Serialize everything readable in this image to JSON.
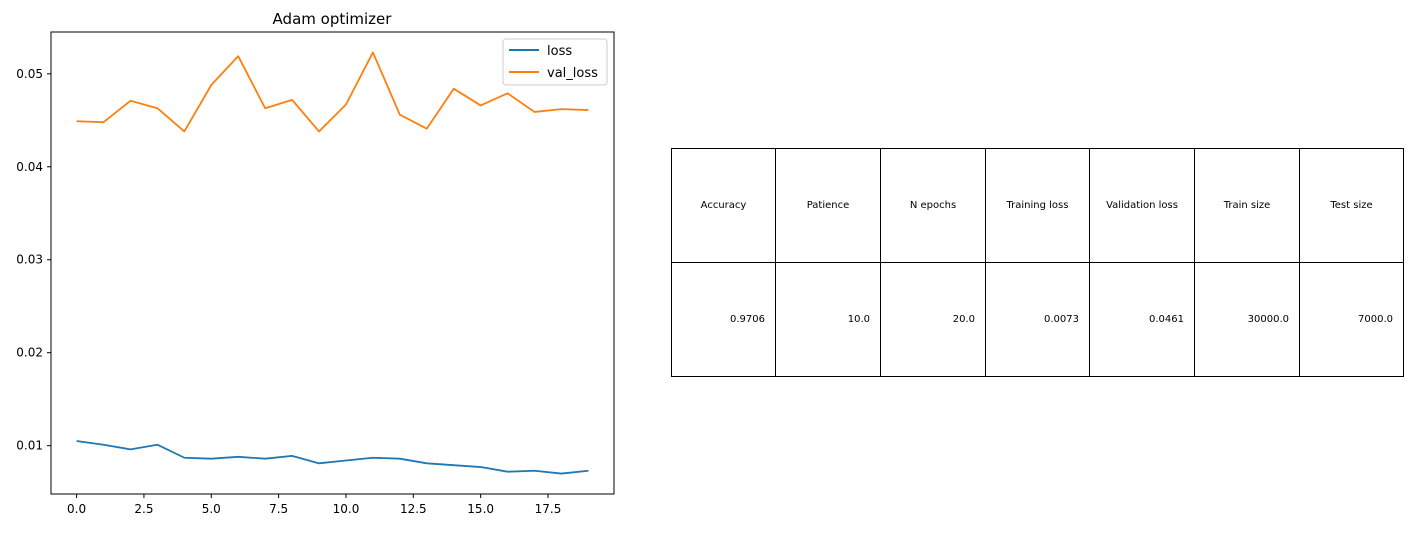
{
  "chart_data": {
    "type": "line",
    "title": "Adam optimizer",
    "xlabel": "",
    "ylabel": "",
    "xlim": [
      -0.95,
      19.95
    ],
    "ylim": [
      0.0048,
      0.0545
    ],
    "xticks": [
      0.0,
      2.5,
      5.0,
      7.5,
      10.0,
      12.5,
      15.0,
      17.5
    ],
    "xtick_labels": [
      "0.0",
      "2.5",
      "5.0",
      "7.5",
      "10.0",
      "12.5",
      "15.0",
      "17.5"
    ],
    "yticks": [
      0.01,
      0.02,
      0.03,
      0.04,
      0.05
    ],
    "ytick_labels": [
      "0.01",
      "0.02",
      "0.03",
      "0.04",
      "0.05"
    ],
    "grid": false,
    "legend": "top-right",
    "x": [
      0,
      1,
      2,
      3,
      4,
      5,
      6,
      7,
      8,
      9,
      10,
      11,
      12,
      13,
      14,
      15,
      16,
      17,
      18,
      19
    ],
    "series": [
      {
        "name": "loss",
        "color": "#1f77b4",
        "values": [
          0.0105,
          0.0101,
          0.0096,
          0.0101,
          0.0087,
          0.0086,
          0.0088,
          0.0086,
          0.0089,
          0.0081,
          0.0084,
          0.0087,
          0.0086,
          0.0081,
          0.0079,
          0.0077,
          0.0072,
          0.0073,
          0.007,
          0.0073
        ]
      },
      {
        "name": "val_loss",
        "color": "#ff7f0e",
        "values": [
          0.0449,
          0.0448,
          0.0471,
          0.0463,
          0.0438,
          0.0488,
          0.0519,
          0.0463,
          0.0472,
          0.0438,
          0.0467,
          0.0523,
          0.0456,
          0.0441,
          0.0484,
          0.0466,
          0.0479,
          0.0459,
          0.0462,
          0.0461
        ]
      }
    ]
  },
  "table": {
    "headers": [
      "Accuracy",
      "Patience",
      "N epochs",
      "Training loss",
      "Validation loss",
      "Train size",
      "Test size"
    ],
    "values": [
      "0.9706",
      "10.0",
      "20.0",
      "0.0073",
      "0.0461",
      "30000.0",
      "7000.0"
    ]
  }
}
